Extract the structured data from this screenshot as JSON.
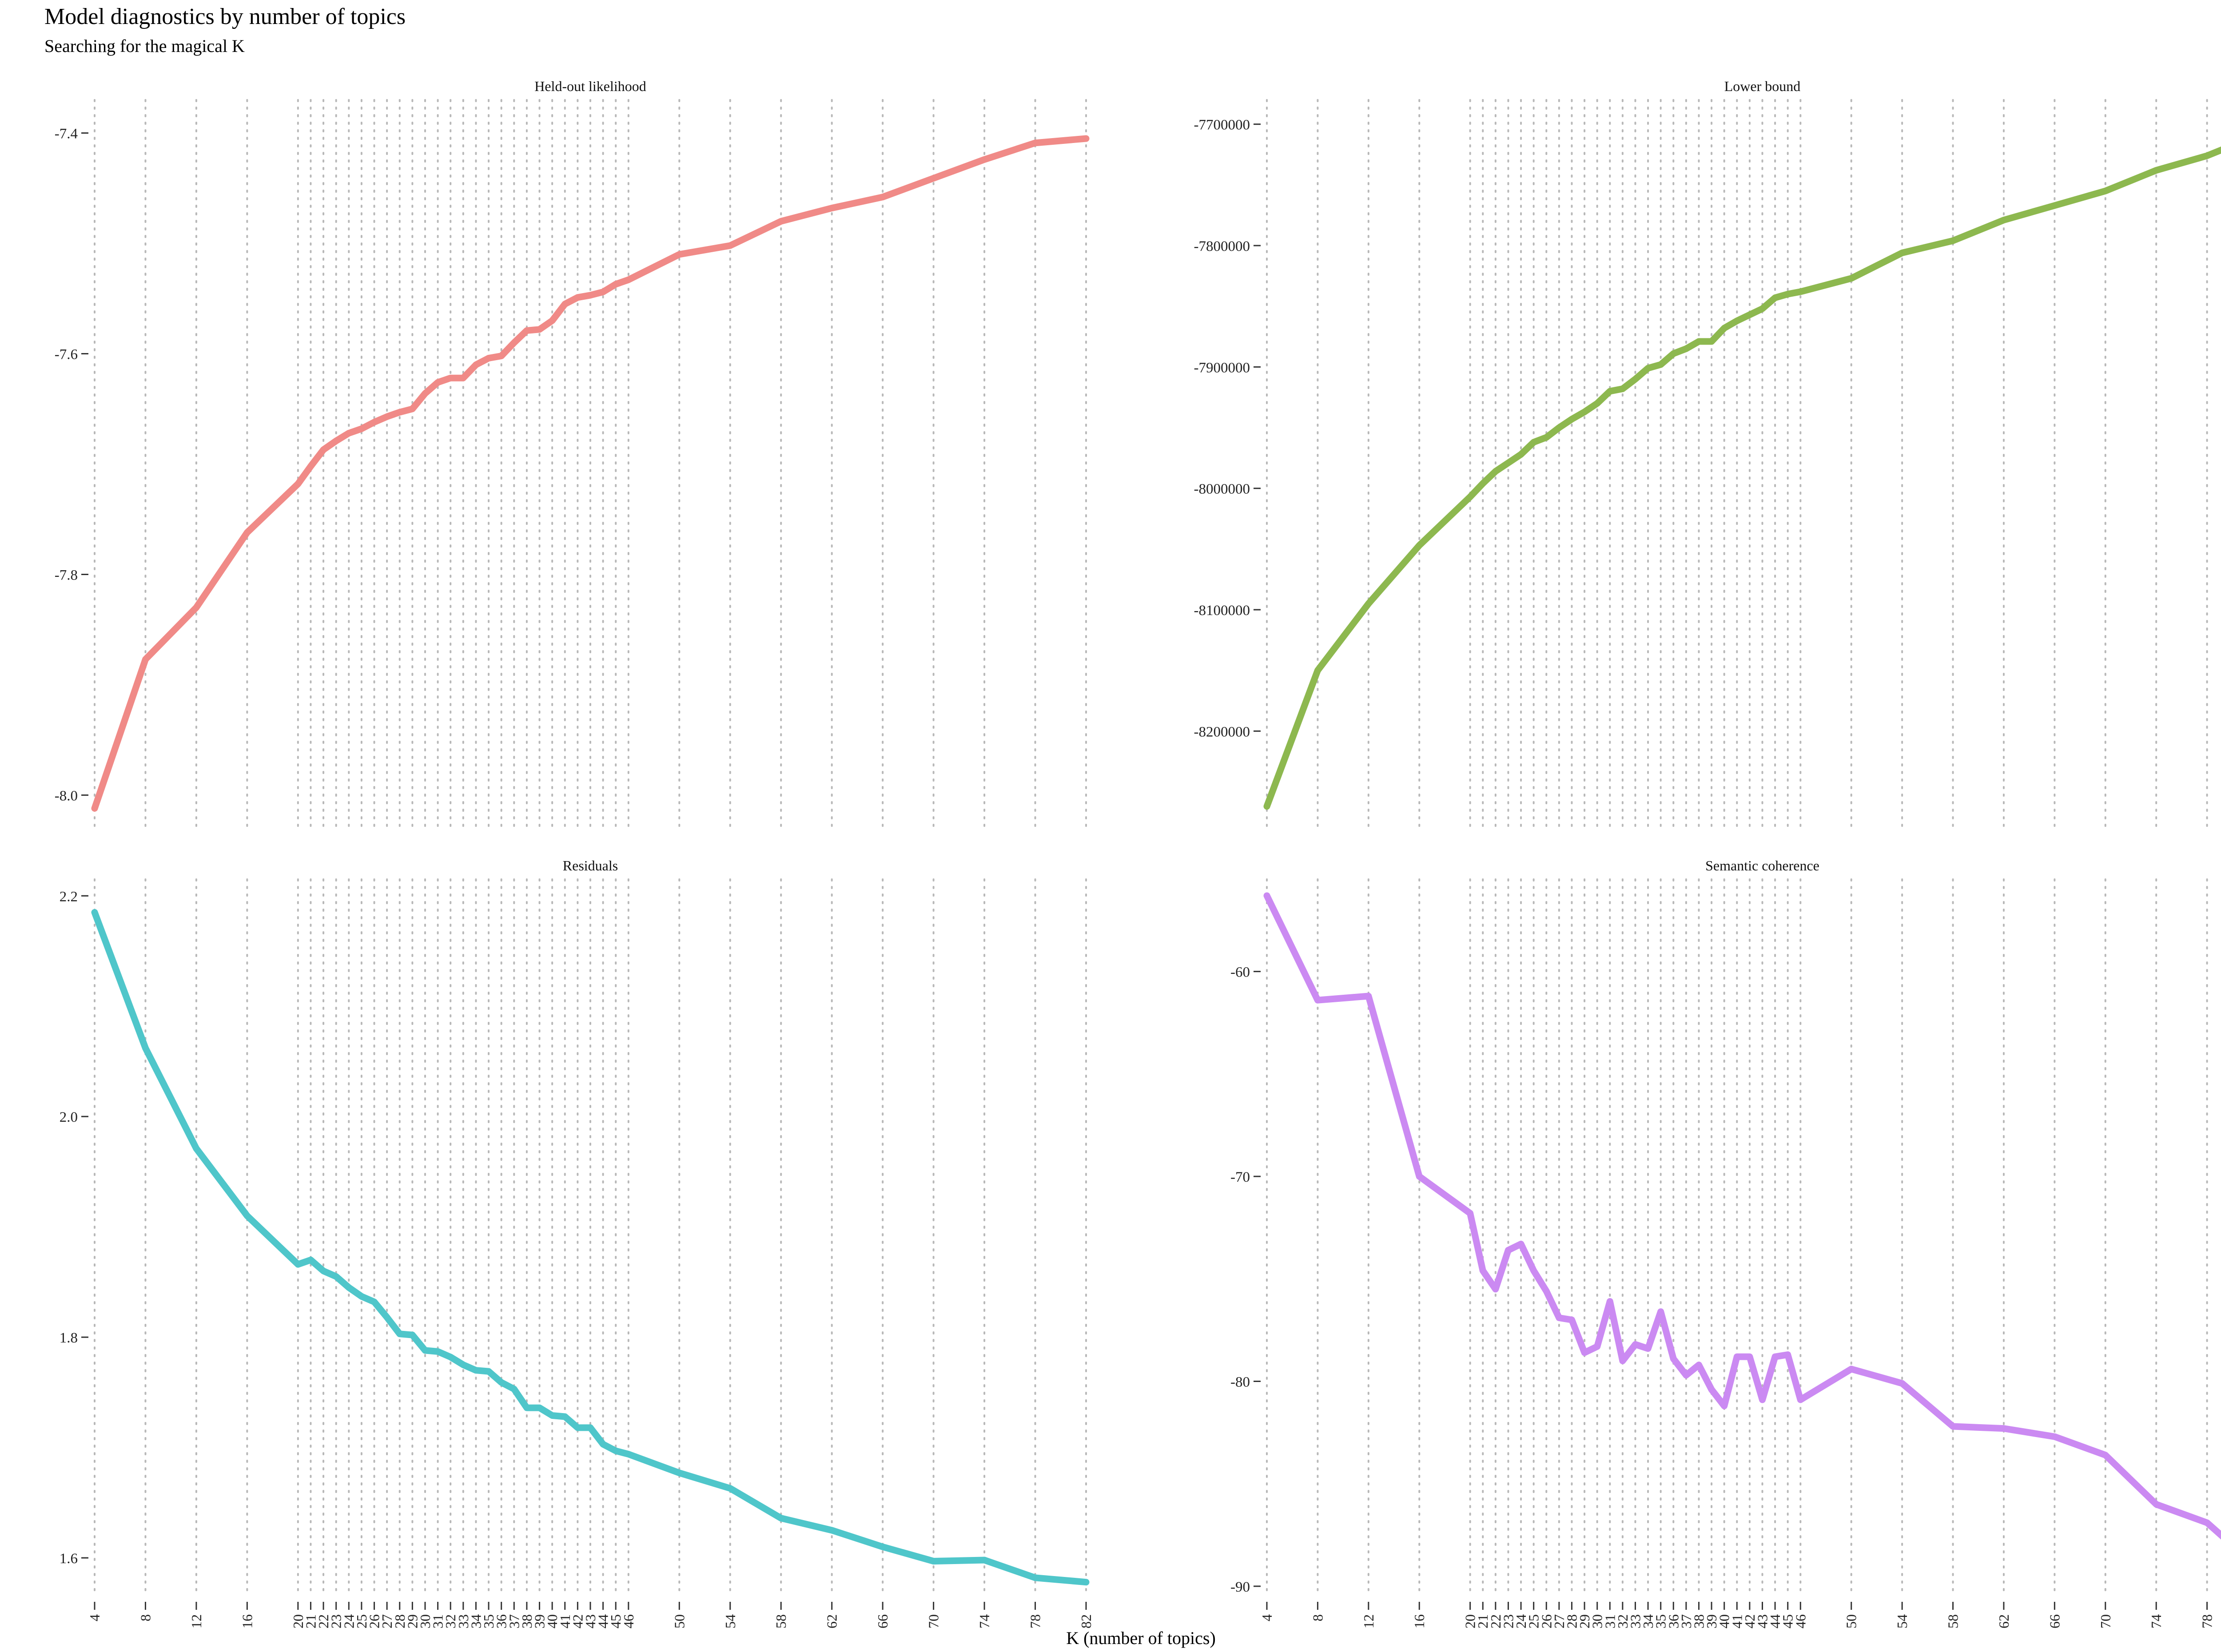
{
  "title": "Model diagnostics by number of topics",
  "subtitle": "Searching for the magical K",
  "xlabel": "K (number of topics)",
  "chart_data": {
    "type": "line",
    "x_ticks": [
      4,
      8,
      12,
      16,
      20,
      21,
      22,
      23,
      24,
      25,
      26,
      27,
      28,
      29,
      30,
      31,
      32,
      33,
      34,
      35,
      36,
      37,
      38,
      39,
      40,
      41,
      42,
      43,
      44,
      45,
      46,
      50,
      54,
      58,
      62,
      66,
      70,
      74,
      78,
      82
    ],
    "x": [
      4,
      8,
      12,
      16,
      20,
      21,
      22,
      23,
      24,
      25,
      26,
      27,
      28,
      29,
      30,
      31,
      32,
      33,
      34,
      35,
      36,
      37,
      38,
      39,
      40,
      41,
      42,
      43,
      44,
      45,
      46,
      50,
      54,
      58,
      62,
      66,
      70,
      74,
      78,
      82
    ],
    "panels": [
      {
        "name": "Held-out likelihood",
        "color": "#F08A87",
        "yticks": [
          "-7.4",
          "-7.6",
          "-7.8",
          "-8.0"
        ],
        "ytick_values": [
          -7.4,
          -7.6,
          -7.8,
          -8.0
        ],
        "ylim": [
          -8.03,
          -7.37
        ],
        "values": [
          -8.012,
          -7.877,
          -7.83,
          -7.762,
          -7.718,
          -7.702,
          -7.687,
          -7.679,
          -7.672,
          -7.668,
          -7.662,
          -7.657,
          -7.653,
          -7.65,
          -7.636,
          -7.626,
          -7.622,
          -7.622,
          -7.61,
          -7.604,
          -7.602,
          -7.59,
          -7.579,
          -7.578,
          -7.57,
          -7.555,
          -7.549,
          -7.547,
          -7.544,
          -7.537,
          -7.533,
          -7.51,
          -7.502,
          -7.48,
          -7.468,
          -7.458,
          -7.441,
          -7.424,
          -7.409,
          -7.405
        ]
      },
      {
        "name": "Lower bound",
        "color": "#8DB84F",
        "yticks": [
          "-7700000",
          "-7800000",
          "-7900000",
          "-8000000",
          "-8100000",
          "-8200000"
        ],
        "ytick_values": [
          -7700000,
          -7800000,
          -7900000,
          -8000000,
          -8100000,
          -8200000
        ],
        "ylim": [
          -8280000,
          -7680000
        ],
        "values": [
          -8262000,
          -8150000,
          -8095000,
          -8047000,
          -8007000,
          -7996000,
          -7986000,
          -7979000,
          -7972000,
          -7962000,
          -7958000,
          -7950000,
          -7943000,
          -7937000,
          -7930000,
          -7920000,
          -7918000,
          -7910000,
          -7901000,
          -7898000,
          -7889000,
          -7885000,
          -7879000,
          -7879000,
          -7868000,
          -7862000,
          -7857000,
          -7852000,
          -7843000,
          -7840000,
          -7838000,
          -7827000,
          -7806000,
          -7796000,
          -7779000,
          -7767000,
          -7755000,
          -7738000,
          -7726000,
          -7709000
        ]
      },
      {
        "name": "Residuals",
        "color": "#4FC6CA",
        "yticks": [
          "2.2",
          "2.0",
          "1.8",
          "1.6"
        ],
        "ytick_values": [
          2.2,
          2.0,
          1.8,
          1.6
        ],
        "ylim": [
          1.565,
          2.215
        ],
        "values": [
          2.185,
          2.062,
          1.971,
          1.91,
          1.866,
          1.87,
          1.86,
          1.855,
          1.845,
          1.837,
          1.832,
          1.818,
          1.803,
          1.802,
          1.788,
          1.787,
          1.782,
          1.775,
          1.77,
          1.769,
          1.759,
          1.753,
          1.736,
          1.736,
          1.729,
          1.728,
          1.718,
          1.718,
          1.703,
          1.697,
          1.694,
          1.677,
          1.663,
          1.636,
          1.625,
          1.61,
          1.597,
          1.598,
          1.582,
          1.578
        ]
      },
      {
        "name": "Semantic coherence",
        "color": "#CB8AF2",
        "yticks": [
          "-60",
          "-70",
          "-80",
          "-90"
        ],
        "ytick_values": [
          -60,
          -70,
          -80,
          -90
        ],
        "ylim": [
          -90.5,
          -55.5
        ],
        "values": [
          -56.3,
          -61.4,
          -61.2,
          -70.0,
          -71.8,
          -74.6,
          -75.5,
          -73.6,
          -73.3,
          -74.6,
          -75.6,
          -76.9,
          -77.0,
          -78.6,
          -78.3,
          -76.1,
          -79.0,
          -78.2,
          -78.4,
          -76.6,
          -78.9,
          -79.7,
          -79.2,
          -80.4,
          -81.2,
          -78.8,
          -78.8,
          -80.9,
          -78.8,
          -78.7,
          -80.9,
          -79.4,
          -80.1,
          -82.2,
          -82.3,
          -82.7,
          -83.6,
          -86.0,
          -86.9,
          -89.1
        ]
      }
    ]
  }
}
